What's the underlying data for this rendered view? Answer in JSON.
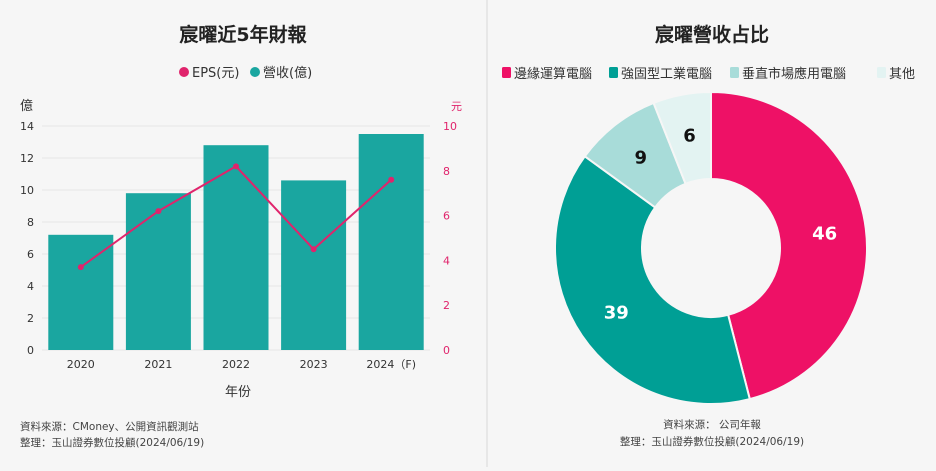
{
  "chart_data": [
    {
      "type": "bar",
      "title": "宸曜近5年財報",
      "legend": [
        {
          "name": "EPS(元)",
          "color": "#e0246c"
        },
        {
          "name": "營收(億)",
          "color": "#1aa6a0"
        }
      ],
      "categories": [
        "2020",
        "2021",
        "2022",
        "2023",
        "2024（F)"
      ],
      "series": [
        {
          "name": "營收(億)",
          "type": "bar",
          "axis": "left",
          "color": "#1aa6a0",
          "values": [
            7.2,
            9.8,
            12.8,
            10.6,
            13.5
          ]
        },
        {
          "name": "EPS(元)",
          "type": "line",
          "axis": "right",
          "color": "#e0246c",
          "values": [
            3.7,
            6.2,
            8.2,
            4.5,
            7.6
          ]
        }
      ],
      "xlabel": "年份",
      "ylabel_left": "億",
      "ylabel_right": "元",
      "ylim_left": [
        0,
        14
      ],
      "ylim_right": [
        0,
        10
      ],
      "yticks_left": [
        "0",
        "2",
        "4",
        "6",
        "8",
        "10",
        "12",
        "14"
      ],
      "yticks_right": [
        "0",
        "2",
        "4",
        "6",
        "8",
        "10"
      ],
      "source_line1": "資料來源：CMoney、公開資訊觀測站",
      "source_line2": "整理：玉山證券數位投顧(2024/06/19)"
    },
    {
      "type": "pie",
      "title": "宸曜營收占比",
      "categories": [
        "邊緣運算電腦",
        "強固型工業電腦",
        "垂直市場應用電腦",
        "其他"
      ],
      "values": [
        46,
        39,
        9,
        6
      ],
      "labels": [
        "46",
        "39",
        "9",
        "6"
      ],
      "colors": [
        "#ee1166",
        "#009f95",
        "#a8dcd9",
        "#e3f3f2"
      ],
      "source_line1": "資料來源： 公司年報",
      "source_line2": "整理：玉山證券數位投顧(2024/06/19)"
    }
  ]
}
